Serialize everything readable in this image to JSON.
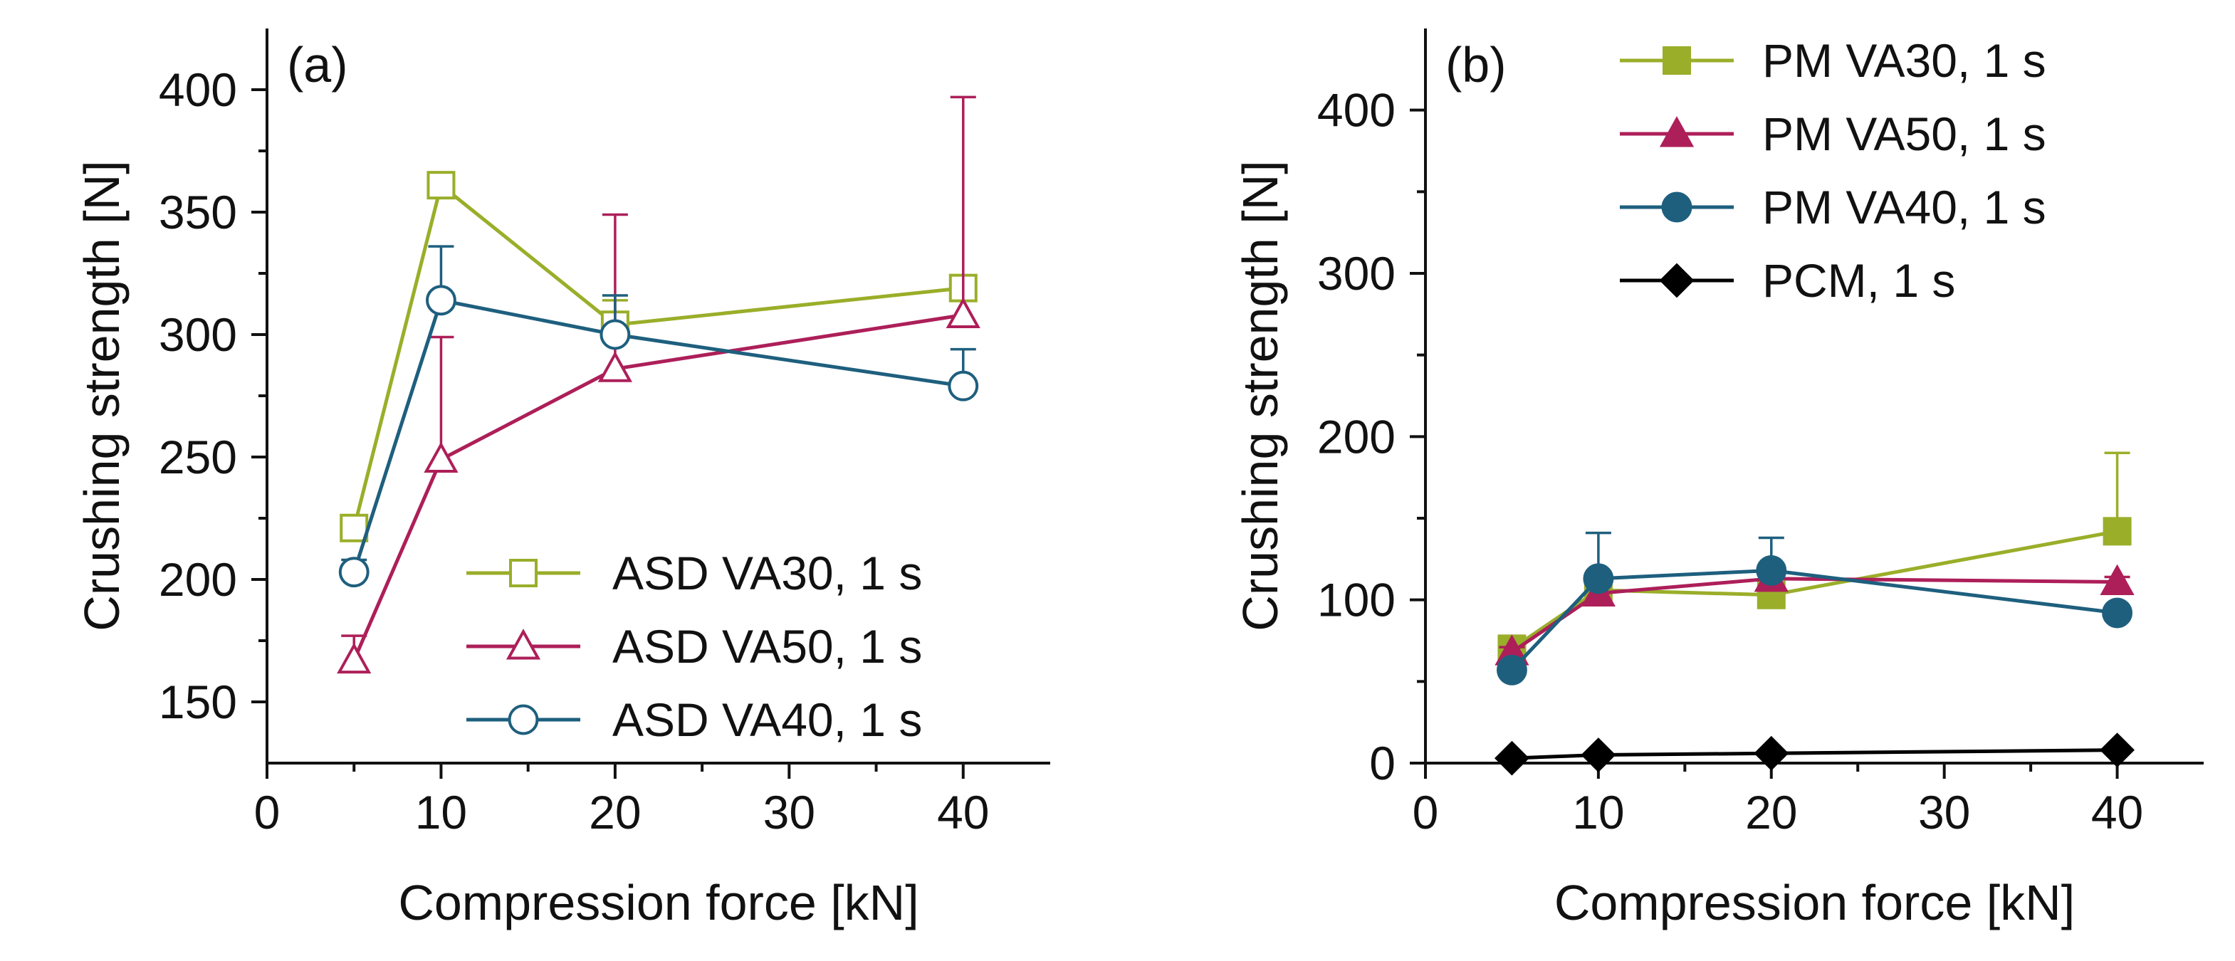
{
  "chart_data": [
    {
      "panel": "(a)",
      "type": "line",
      "xlabel": "Compression force [kN]",
      "ylabel": "Crushing strength [N]",
      "xlim": [
        0,
        45
      ],
      "ylim": [
        125,
        425
      ],
      "xticks": [
        0,
        10,
        20,
        30,
        40
      ],
      "yticks": [
        150,
        200,
        250,
        300,
        350,
        400
      ],
      "x": [
        5,
        10,
        20,
        40
      ],
      "legend_position": "bottom-right",
      "series": [
        {
          "name": "ASD VA30, 1 s",
          "color": "#9aae29",
          "marker": "square",
          "filled": false,
          "values": [
            221,
            361,
            304,
            319
          ],
          "errors": [
            0,
            0,
            10,
            0
          ]
        },
        {
          "name": "ASD VA50, 1 s",
          "color": "#ad1f59",
          "marker": "triangle",
          "filled": false,
          "values": [
            167,
            249,
            286,
            308
          ],
          "errors": [
            10,
            50,
            63,
            89
          ]
        },
        {
          "name": "ASD VA40, 1 s",
          "color": "#1e5f7e",
          "marker": "circle",
          "filled": false,
          "values": [
            203,
            314,
            300,
            279
          ],
          "errors": [
            5,
            22,
            16,
            15
          ]
        }
      ]
    },
    {
      "panel": "(b)",
      "type": "line",
      "xlabel": "Compression force [kN]",
      "ylabel": "Crushing strength [N]",
      "xlim": [
        0,
        45
      ],
      "ylim": [
        0,
        450
      ],
      "xticks": [
        0,
        10,
        20,
        30,
        40
      ],
      "yticks": [
        0,
        100,
        200,
        300,
        400
      ],
      "x": [
        5,
        10,
        20,
        40
      ],
      "legend_position": "top-right",
      "series": [
        {
          "name": "PM VA30, 1 s",
          "color": "#9aae29",
          "marker": "square",
          "filled": true,
          "values": [
            70,
            106,
            103,
            142
          ],
          "errors": [
            8,
            5,
            5,
            48
          ]
        },
        {
          "name": "PM VA50, 1 s",
          "color": "#ad1f59",
          "marker": "triangle",
          "filled": true,
          "values": [
            68,
            104,
            113,
            111
          ],
          "errors": [
            3,
            5,
            5,
            3
          ]
        },
        {
          "name": "PM VA40, 1 s",
          "color": "#1e5f7e",
          "marker": "circle",
          "filled": true,
          "values": [
            57,
            113,
            118,
            92
          ],
          "errors": [
            5,
            28,
            20,
            0
          ]
        },
        {
          "name": "PCM, 1 s",
          "color": "#000000",
          "marker": "diamond",
          "filled": true,
          "values": [
            3,
            5,
            6,
            8
          ],
          "errors": [
            0,
            0,
            0,
            0
          ]
        }
      ]
    }
  ]
}
